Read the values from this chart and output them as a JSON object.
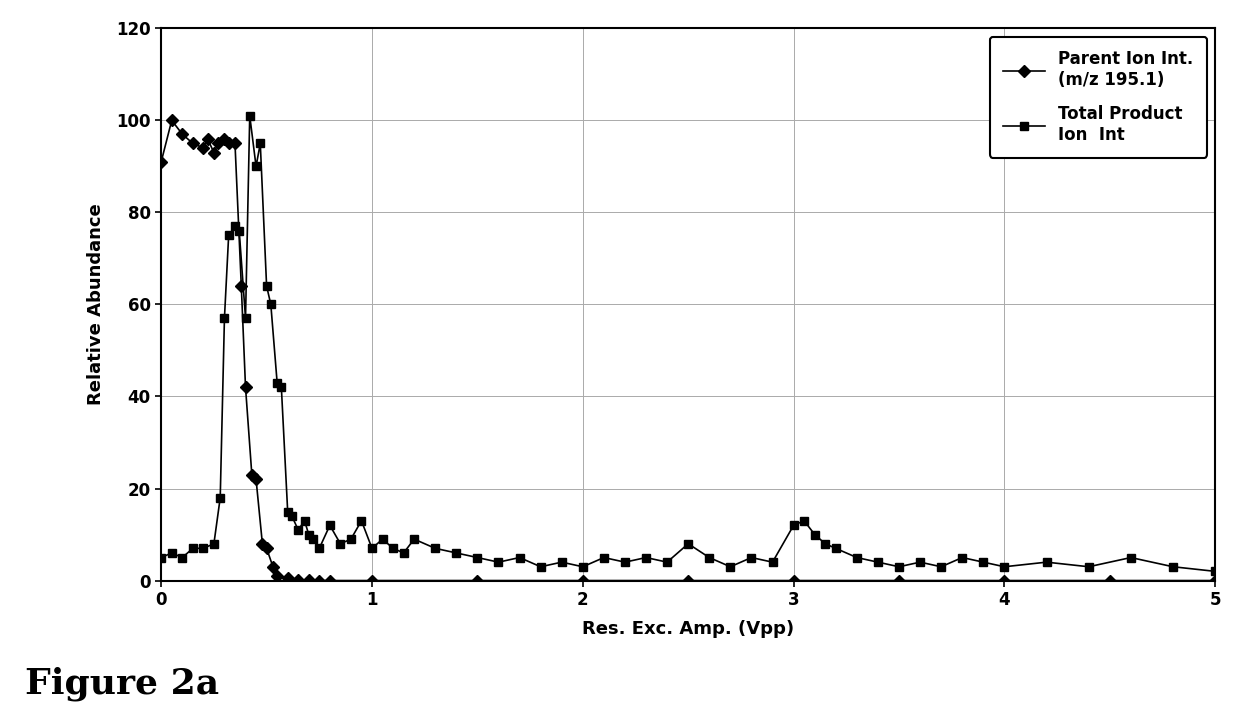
{
  "ylabel": "Relative Abundance",
  "xlabel": "Res. Exc. Amp. (Vpp)",
  "figure_label": "Figure 2a",
  "ylim": [
    0,
    120
  ],
  "xlim": [
    0,
    5
  ],
  "yticks": [
    0,
    20,
    40,
    60,
    80,
    100,
    120
  ],
  "xticks": [
    0,
    1,
    2,
    3,
    4,
    5
  ],
  "legend1_label": "Parent Ion Int.\n(m/z 195.1)",
  "legend2_label": "Total Product\nIon  Int",
  "parent_x": [
    0.0,
    0.05,
    0.1,
    0.15,
    0.2,
    0.22,
    0.25,
    0.27,
    0.3,
    0.32,
    0.35,
    0.38,
    0.4,
    0.43,
    0.45,
    0.48,
    0.5,
    0.53,
    0.55,
    0.6,
    0.65,
    0.7,
    0.75,
    0.8,
    1.0,
    1.5,
    2.0,
    2.5,
    3.0,
    3.5,
    4.0,
    4.5,
    5.0
  ],
  "parent_y": [
    91,
    100,
    97,
    95,
    94,
    96,
    93,
    95,
    96,
    95,
    95,
    64,
    42,
    23,
    22,
    8,
    7,
    3,
    1,
    0.5,
    0.2,
    0.1,
    0.0,
    0.0,
    0.0,
    0.0,
    0.0,
    0.0,
    0.0,
    0.0,
    0.0,
    0.0,
    0.0
  ],
  "product_x": [
    0.0,
    0.05,
    0.1,
    0.15,
    0.2,
    0.25,
    0.28,
    0.3,
    0.32,
    0.35,
    0.37,
    0.4,
    0.42,
    0.45,
    0.47,
    0.5,
    0.52,
    0.55,
    0.57,
    0.6,
    0.62,
    0.65,
    0.68,
    0.7,
    0.72,
    0.75,
    0.8,
    0.85,
    0.9,
    0.95,
    1.0,
    1.05,
    1.1,
    1.15,
    1.2,
    1.3,
    1.4,
    1.5,
    1.6,
    1.7,
    1.8,
    1.9,
    2.0,
    2.1,
    2.2,
    2.3,
    2.4,
    2.5,
    2.6,
    2.7,
    2.8,
    2.9,
    3.0,
    3.05,
    3.1,
    3.15,
    3.2,
    3.3,
    3.4,
    3.5,
    3.6,
    3.7,
    3.8,
    3.9,
    4.0,
    4.2,
    4.4,
    4.6,
    4.8,
    5.0
  ],
  "product_y": [
    5,
    6,
    5,
    7,
    7,
    8,
    18,
    57,
    75,
    77,
    76,
    57,
    101,
    90,
    95,
    64,
    60,
    43,
    42,
    15,
    14,
    11,
    13,
    10,
    9,
    7,
    12,
    8,
    9,
    13,
    7,
    9,
    7,
    6,
    9,
    7,
    6,
    5,
    4,
    5,
    3,
    4,
    3,
    5,
    4,
    5,
    4,
    8,
    5,
    3,
    5,
    4,
    12,
    13,
    10,
    8,
    7,
    5,
    4,
    3,
    4,
    3,
    5,
    4,
    3,
    4,
    3,
    5,
    3,
    2
  ],
  "line_color": "#000000",
  "marker_color": "#000000",
  "bg_color": "#ffffff",
  "grid_color": "#aaaaaa"
}
